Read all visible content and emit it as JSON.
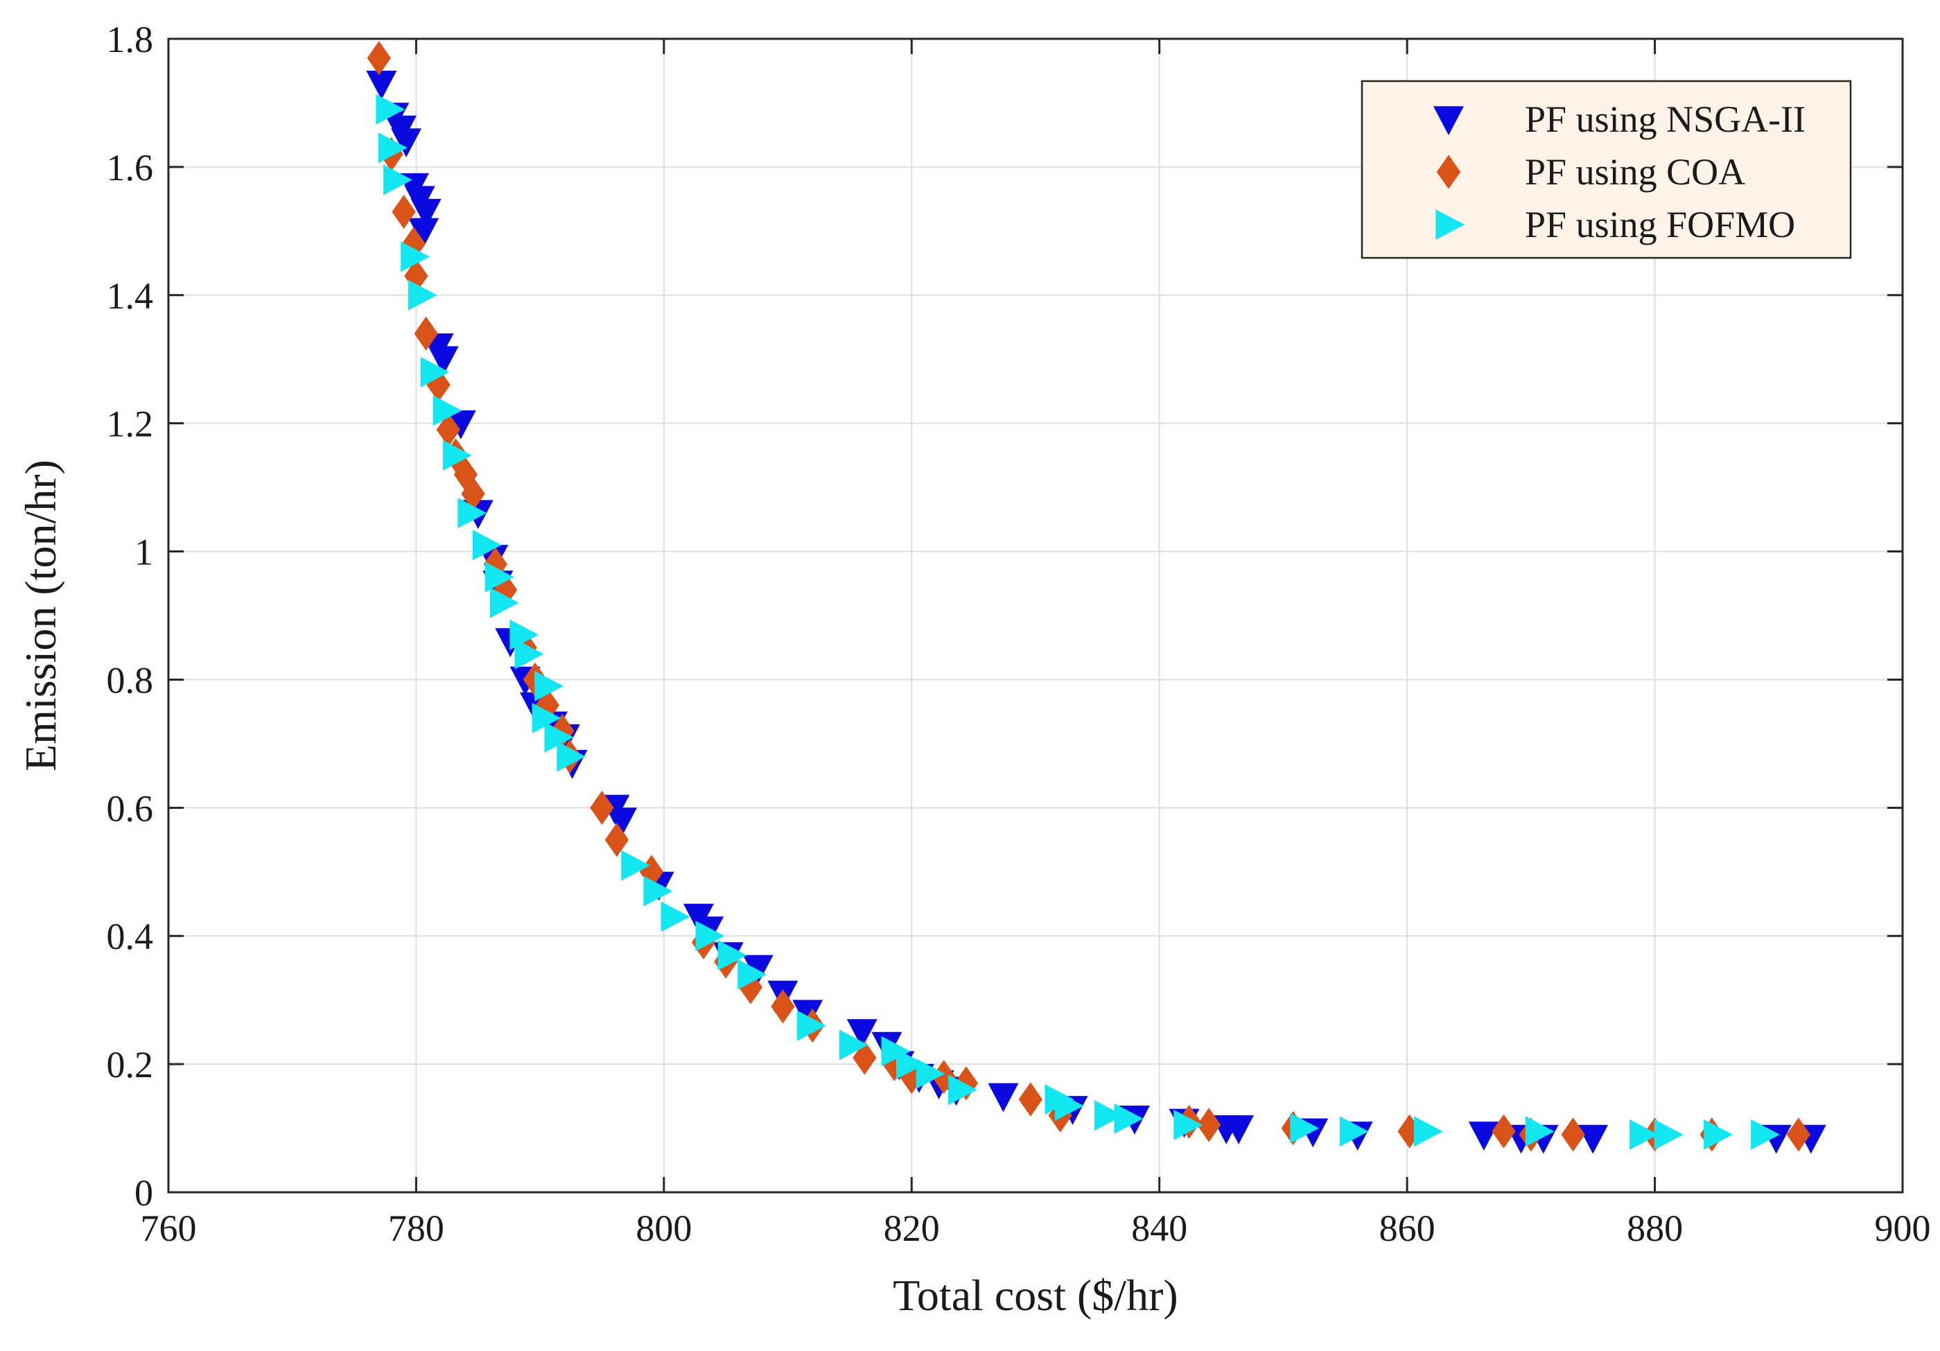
{
  "chart_data": {
    "type": "scatter",
    "title": "",
    "xlabel": "Total cost ($/hr)",
    "ylabel": "Emission (ton/hr)",
    "xlim": [
      760,
      900
    ],
    "ylim": [
      0,
      1.8
    ],
    "xticks": [
      760,
      780,
      800,
      820,
      840,
      860,
      880,
      900
    ],
    "yticks": [
      0,
      0.2,
      0.4,
      0.6,
      0.8,
      1,
      1.2,
      1.4,
      1.6,
      1.8
    ],
    "xtick_labels": [
      "760",
      "780",
      "800",
      "820",
      "840",
      "860",
      "880",
      "900"
    ],
    "ytick_labels": [
      "0",
      "0.2",
      "0.4",
      "0.6",
      "0.8",
      "1",
      "1.2",
      "1.4",
      "1.6",
      "1.8"
    ],
    "grid": true,
    "legend_position": "top-right",
    "series": [
      {
        "name": "PF using NSGA-II",
        "marker": "triangle-down",
        "color": "#0a0ae0",
        "points": [
          [
            777.2,
            1.73
          ],
          [
            778.2,
            1.68
          ],
          [
            778.8,
            1.66
          ],
          [
            779.2,
            1.64
          ],
          [
            779.8,
            1.57
          ],
          [
            780.3,
            1.55
          ],
          [
            780.8,
            1.53
          ],
          [
            780.6,
            1.5
          ],
          [
            781.8,
            1.32
          ],
          [
            782.2,
            1.3
          ],
          [
            783.6,
            1.2
          ],
          [
            785.0,
            1.06
          ],
          [
            786.2,
            0.99
          ],
          [
            786.6,
            0.95
          ],
          [
            787.6,
            0.86
          ],
          [
            788.8,
            0.8
          ],
          [
            789.6,
            0.76
          ],
          [
            791.0,
            0.73
          ],
          [
            792.0,
            0.71
          ],
          [
            792.6,
            0.67
          ],
          [
            796.0,
            0.6
          ],
          [
            796.6,
            0.58
          ],
          [
            799.6,
            0.48
          ],
          [
            802.8,
            0.43
          ],
          [
            803.6,
            0.41
          ],
          [
            805.2,
            0.37
          ],
          [
            807.6,
            0.35
          ],
          [
            809.6,
            0.31
          ],
          [
            811.6,
            0.28
          ],
          [
            816.0,
            0.25
          ],
          [
            818.0,
            0.23
          ],
          [
            819.0,
            0.2
          ],
          [
            820.6,
            0.18
          ],
          [
            822.2,
            0.17
          ],
          [
            823.6,
            0.16
          ],
          [
            827.4,
            0.15
          ],
          [
            833.0,
            0.13
          ],
          [
            838.0,
            0.115
          ],
          [
            842.0,
            0.11
          ],
          [
            845.4,
            0.1
          ],
          [
            846.4,
            0.1
          ],
          [
            852.4,
            0.095
          ],
          [
            856.0,
            0.09
          ],
          [
            866.2,
            0.09
          ],
          [
            869.2,
            0.085
          ],
          [
            871.0,
            0.085
          ],
          [
            875.0,
            0.085
          ],
          [
            889.8,
            0.085
          ],
          [
            892.6,
            0.085
          ]
        ]
      },
      {
        "name": "PF using COA",
        "marker": "diamond",
        "color": "#d95319",
        "points": [
          [
            777.0,
            1.77
          ],
          [
            778.0,
            1.62
          ],
          [
            779.0,
            1.53
          ],
          [
            779.8,
            1.48
          ],
          [
            780.0,
            1.43
          ],
          [
            780.8,
            1.34
          ],
          [
            781.8,
            1.26
          ],
          [
            782.6,
            1.19
          ],
          [
            783.2,
            1.15
          ],
          [
            784.0,
            1.12
          ],
          [
            784.6,
            1.09
          ],
          [
            786.4,
            0.98
          ],
          [
            787.2,
            0.94
          ],
          [
            788.8,
            0.85
          ],
          [
            789.6,
            0.8
          ],
          [
            790.6,
            0.76
          ],
          [
            791.8,
            0.72
          ],
          [
            792.4,
            0.68
          ],
          [
            795.0,
            0.6
          ],
          [
            796.2,
            0.55
          ],
          [
            799.0,
            0.5
          ],
          [
            803.2,
            0.39
          ],
          [
            805.0,
            0.36
          ],
          [
            807.0,
            0.32
          ],
          [
            809.6,
            0.29
          ],
          [
            812.0,
            0.26
          ],
          [
            816.2,
            0.21
          ],
          [
            818.6,
            0.2
          ],
          [
            820.0,
            0.18
          ],
          [
            822.6,
            0.18
          ],
          [
            824.4,
            0.17
          ],
          [
            829.6,
            0.145
          ],
          [
            832.0,
            0.12
          ],
          [
            842.4,
            0.11
          ],
          [
            844.0,
            0.105
          ],
          [
            850.8,
            0.1
          ],
          [
            860.2,
            0.095
          ],
          [
            867.8,
            0.095
          ],
          [
            870.0,
            0.09
          ],
          [
            873.4,
            0.09
          ],
          [
            880.0,
            0.09
          ],
          [
            884.6,
            0.09
          ],
          [
            891.6,
            0.09
          ]
        ]
      },
      {
        "name": "PF using FOFMO",
        "marker": "triangle-right",
        "color": "#12e6f0",
        "points": [
          [
            777.8,
            1.69
          ],
          [
            778.0,
            1.63
          ],
          [
            778.4,
            1.58
          ],
          [
            779.8,
            1.46
          ],
          [
            780.4,
            1.4
          ],
          [
            781.4,
            1.28
          ],
          [
            782.4,
            1.22
          ],
          [
            783.2,
            1.15
          ],
          [
            784.4,
            1.06
          ],
          [
            785.6,
            1.01
          ],
          [
            786.6,
            0.96
          ],
          [
            787.0,
            0.92
          ],
          [
            788.6,
            0.87
          ],
          [
            789.0,
            0.84
          ],
          [
            790.6,
            0.79
          ],
          [
            790.4,
            0.74
          ],
          [
            791.4,
            0.71
          ],
          [
            792.4,
            0.68
          ],
          [
            797.6,
            0.51
          ],
          [
            799.4,
            0.47
          ],
          [
            800.8,
            0.43
          ],
          [
            803.6,
            0.4
          ],
          [
            805.4,
            0.37
          ],
          [
            807.0,
            0.34
          ],
          [
            811.8,
            0.26
          ],
          [
            815.2,
            0.23
          ],
          [
            818.6,
            0.22
          ],
          [
            819.8,
            0.2
          ],
          [
            821.4,
            0.185
          ],
          [
            824.0,
            0.16
          ],
          [
            831.8,
            0.145
          ],
          [
            832.6,
            0.135
          ],
          [
            835.8,
            0.12
          ],
          [
            837.4,
            0.115
          ],
          [
            842.2,
            0.105
          ],
          [
            851.6,
            0.1
          ],
          [
            855.6,
            0.095
          ],
          [
            861.6,
            0.095
          ],
          [
            870.6,
            0.095
          ],
          [
            879.0,
            0.09
          ],
          [
            881.0,
            0.09
          ],
          [
            885.0,
            0.09
          ],
          [
            888.8,
            0.09
          ]
        ]
      }
    ]
  }
}
